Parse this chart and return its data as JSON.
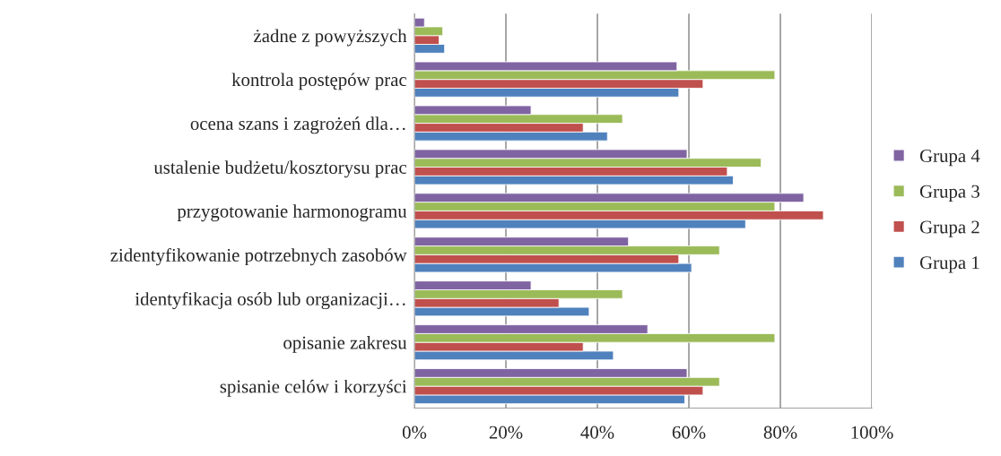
{
  "chart_data": {
    "type": "bar",
    "orientation": "horizontal",
    "categories": [
      "żadne z powyższych",
      "kontrola postępów prac",
      "ocena szans i zagrożeń dla…",
      "ustalenie budżetu/kosztorysu prac",
      "przygotowanie harmonogramu",
      "zidentyfikowanie potrzebnych zasobów",
      "identyfikacja osób lub organizacji…",
      "opisanie zakresu",
      "spisanie celów i korzyści"
    ],
    "series": [
      {
        "name": "Grupa 1",
        "color": "#4f81bd",
        "values": [
          6.6,
          57.8,
          42.2,
          69.7,
          72.4,
          60.6,
          38.2,
          43.5,
          59.1
        ]
      },
      {
        "name": "Grupa 2",
        "color": "#c0504d",
        "values": [
          5.4,
          63.1,
          36.9,
          68.4,
          89.4,
          57.8,
          31.6,
          36.9,
          63.1
        ]
      },
      {
        "name": "Grupa 3",
        "color": "#9bbb59",
        "values": [
          6.2,
          78.8,
          45.5,
          75.8,
          78.8,
          66.7,
          45.5,
          78.8,
          66.7
        ]
      },
      {
        "name": "Grupa 4",
        "color": "#8064a2",
        "values": [
          2.2,
          57.4,
          25.5,
          59.6,
          85.1,
          46.8,
          25.5,
          51.0,
          59.6
        ]
      }
    ],
    "xlim": [
      0,
      100
    ],
    "xticks": [
      {
        "value": 0,
        "label": "0%"
      },
      {
        "value": 20,
        "label": "20%"
      },
      {
        "value": 40,
        "label": "40%"
      },
      {
        "value": 60,
        "label": "60%"
      },
      {
        "value": 80,
        "label": "80%"
      },
      {
        "value": 100,
        "label": "100%"
      }
    ],
    "grid": "x",
    "legend": "right"
  }
}
